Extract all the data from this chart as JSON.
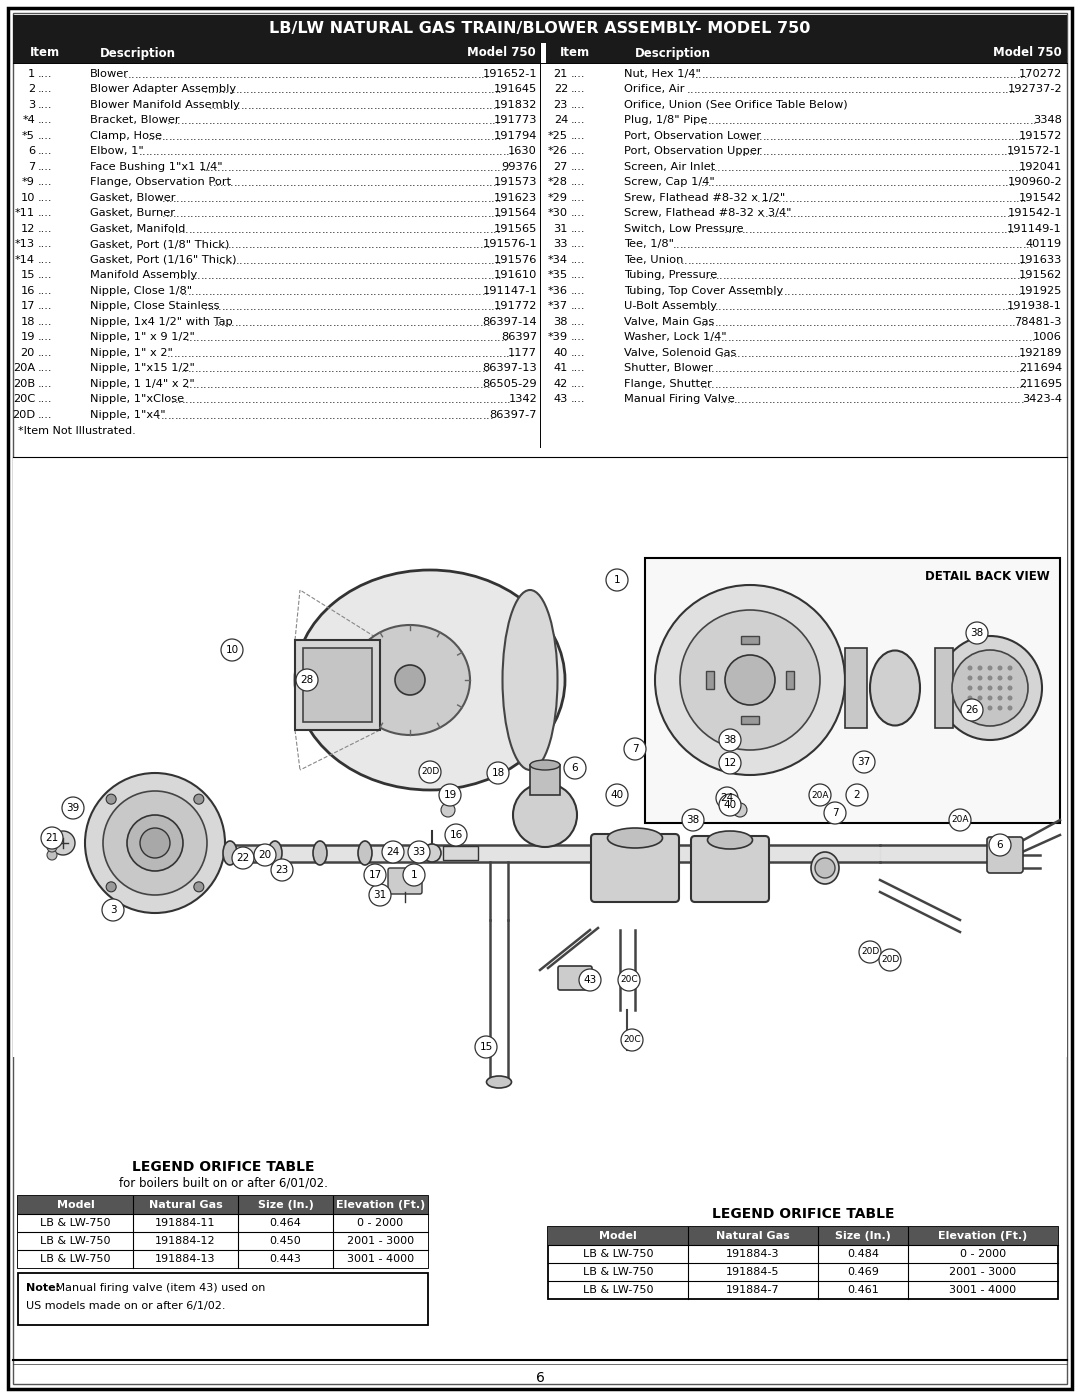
{
  "title": "LB/LW NATURAL GAS TRAIN/BLOWER ASSEMBLY- MODEL 750",
  "background_color": "#ffffff",
  "header_bg": "#1a1a1a",
  "left_items": [
    [
      "1",
      "Blower",
      "191652-1"
    ],
    [
      "2",
      "Blower Adapter Assembly",
      "191645"
    ],
    [
      "3",
      "Blower Manifold Assembly",
      "191832"
    ],
    [
      "*4",
      "Bracket, Blower",
      "191773"
    ],
    [
      "*5",
      "Clamp, Hose",
      "191794"
    ],
    [
      "6",
      "Elbow, 1\"",
      "1630"
    ],
    [
      "7",
      "Face Bushing 1\"x1 1/4\"",
      "99376"
    ],
    [
      "*9",
      "Flange, Observation Port",
      "191573"
    ],
    [
      "10",
      "Gasket, Blower",
      "191623"
    ],
    [
      "*11",
      "Gasket, Burner",
      "191564"
    ],
    [
      "12",
      "Gasket, Manifold",
      "191565"
    ],
    [
      "*13",
      "Gasket, Port (1/8\" Thick)",
      "191576-1"
    ],
    [
      "*14",
      "Gasket, Port (1/16\" Thick)",
      "191576"
    ],
    [
      "15",
      "Manifold Assembly",
      "191610"
    ],
    [
      "16",
      "Nipple, Close 1/8\"",
      "191147-1"
    ],
    [
      "17",
      "Nipple, Close Stainless",
      "191772"
    ],
    [
      "18",
      "Nipple, 1x4 1/2\" with Tap",
      "86397-14"
    ],
    [
      "19",
      "Nipple, 1\" x 9 1/2\"",
      "86397"
    ],
    [
      "20",
      "Nipple, 1\" x 2\"",
      "1177"
    ],
    [
      "20A",
      "Nipple, 1\"x15 1/2\"",
      "86397-13"
    ],
    [
      "20B",
      "Nipple, 1 1/4\" x 2\"",
      "86505-29"
    ],
    [
      "20C",
      "Nipple, 1\"xClose",
      "1342"
    ],
    [
      "20D",
      "Nipple, 1\"x4\"",
      "86397-7"
    ]
  ],
  "right_items": [
    [
      "21",
      "Nut, Hex 1/4\"",
      "170272"
    ],
    [
      "22",
      "Orifice, Air",
      "192737-2"
    ],
    [
      "23",
      "Orifice, Union (See Orifice Table Below)",
      ""
    ],
    [
      "24",
      "Plug, 1/8\" Pipe",
      "3348"
    ],
    [
      "*25",
      "Port, Observation Lower",
      "191572"
    ],
    [
      "*26",
      "Port, Observation Upper",
      "191572-1"
    ],
    [
      "27",
      "Screen, Air Inlet",
      "192041"
    ],
    [
      "*28",
      "Screw, Cap 1/4\"",
      "190960-2"
    ],
    [
      "*29",
      "Srew, Flathead #8-32 x 1/2\"",
      "191542"
    ],
    [
      "*30",
      "Screw, Flathead #8-32 x 3/4\"",
      "191542-1"
    ],
    [
      "31",
      "Switch, Low Pressure",
      "191149-1"
    ],
    [
      "33",
      "Tee, 1/8\"",
      "40119"
    ],
    [
      "*34",
      "Tee, Union",
      "191633"
    ],
    [
      "*35",
      "Tubing, Pressure",
      "191562"
    ],
    [
      "*36",
      "Tubing, Top Cover Assembly",
      "191925"
    ],
    [
      "*37",
      "U-Bolt Assembly",
      "191938-1"
    ],
    [
      "38",
      "Valve, Main Gas",
      "78481-3"
    ],
    [
      "*39",
      "Washer, Lock 1/4\"",
      "1006"
    ],
    [
      "40",
      "Valve, Solenoid Gas",
      "192189"
    ],
    [
      "41",
      "Shutter, Blower",
      "211694"
    ],
    [
      "42",
      "Flange, Shutter",
      "211695"
    ],
    [
      "43",
      "Manual Firing Valve",
      "3423-4"
    ]
  ],
  "note_not_illustrated": "*Item Not Illustrated.",
  "legend_title_left": "LEGEND ORIFICE TABLE",
  "legend_subtitle_left": "for boilers built on or after 6/01/02.",
  "legend_left_headers": [
    "Model",
    "Natural Gas",
    "Size (In.)",
    "Elevation (Ft.)"
  ],
  "legend_left_rows": [
    [
      "LB & LW-750",
      "191884-11",
      "0.464",
      "0 - 2000"
    ],
    [
      "LB & LW-750",
      "191884-12",
      "0.450",
      "2001 - 3000"
    ],
    [
      "LB & LW-750",
      "191884-13",
      "0.443",
      "3001 - 4000"
    ]
  ],
  "legend_note_bold": "Note:",
  "legend_note_rest": " Manual firing valve (item 43) used on\nUS models made on or after 6/1/02.",
  "legend_title_right": "LEGEND ORIFICE TABLE",
  "legend_right_headers": [
    "Model",
    "Natural Gas",
    "Size (In.)",
    "Elevation (Ft.)"
  ],
  "legend_right_rows": [
    [
      "LB & LW-750",
      "191884-3",
      "0.484",
      "0 - 2000"
    ],
    [
      "LB & LW-750",
      "191884-5",
      "0.469",
      "2001 - 3000"
    ],
    [
      "LB & LW-750",
      "191884-7",
      "0.461",
      "3001 - 4000"
    ]
  ],
  "detail_back_view_label": "DETAIL BACK VIEW",
  "page_number": "6"
}
